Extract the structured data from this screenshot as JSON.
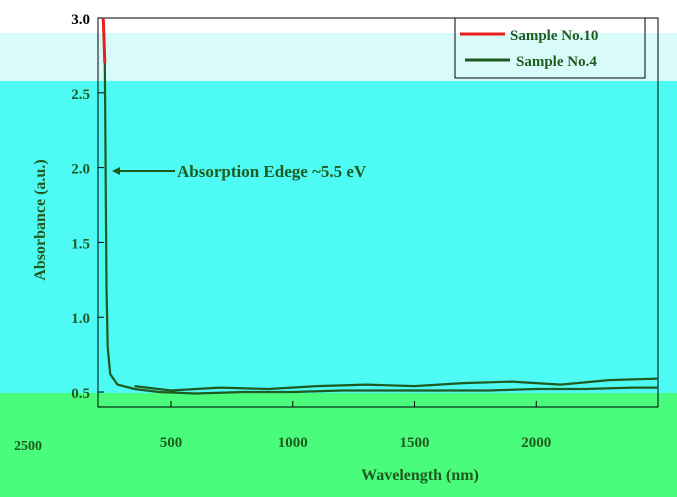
{
  "chart_data": {
    "type": "line",
    "title": "",
    "xlabel": "Wavelength (nm)",
    "ylabel": "Absorbance (a.u.)",
    "xlim": [
      200,
      2500
    ],
    "ylim": [
      0.4,
      3.0
    ],
    "x_ticks": [
      500,
      1000,
      1500,
      2000
    ],
    "x_tick_labels": [
      "500",
      "1000",
      "1500",
      "2000"
    ],
    "y_ticks": [
      0.5,
      1.0,
      1.5,
      2.0,
      2.5,
      3.0
    ],
    "y_tick_labels": [
      "0.5",
      "1.0",
      "1.5",
      "2.0",
      "2.5",
      "3.0"
    ],
    "stray_tick_label": "2500",
    "legend_position": "top-right",
    "annotation": "Absorption Edege ~5.5 eV",
    "background_colors": {
      "top_band": "#d8fbfa",
      "main": "#4dfaf4",
      "bottom_band": "#4afc7c"
    },
    "series": [
      {
        "name": "Sample No.10",
        "color": "#e8201c",
        "x": [
          220,
          222,
          224,
          226,
          228
        ],
        "y": [
          3.0,
          2.98,
          2.9,
          2.8,
          2.7
        ]
      },
      {
        "name": "Sample No.4",
        "color": "#1f5a1f",
        "x": [
          228,
          230,
          232,
          235,
          240,
          250,
          280,
          350,
          450,
          600,
          800,
          1000,
          1200,
          1400,
          1600,
          1800,
          2000,
          2200,
          2400,
          2500
        ],
        "y": [
          2.7,
          2.3,
          1.8,
          1.2,
          0.8,
          0.62,
          0.55,
          0.52,
          0.5,
          0.49,
          0.5,
          0.5,
          0.51,
          0.51,
          0.51,
          0.51,
          0.52,
          0.52,
          0.53,
          0.53
        ]
      },
      {
        "name": "",
        "color": "#1f5a1f",
        "x": [
          350,
          500,
          700,
          900,
          1100,
          1300,
          1500,
          1700,
          1900,
          2100,
          2300,
          2500
        ],
        "y": [
          0.54,
          0.51,
          0.53,
          0.52,
          0.54,
          0.55,
          0.54,
          0.56,
          0.57,
          0.55,
          0.58,
          0.59
        ]
      }
    ]
  }
}
